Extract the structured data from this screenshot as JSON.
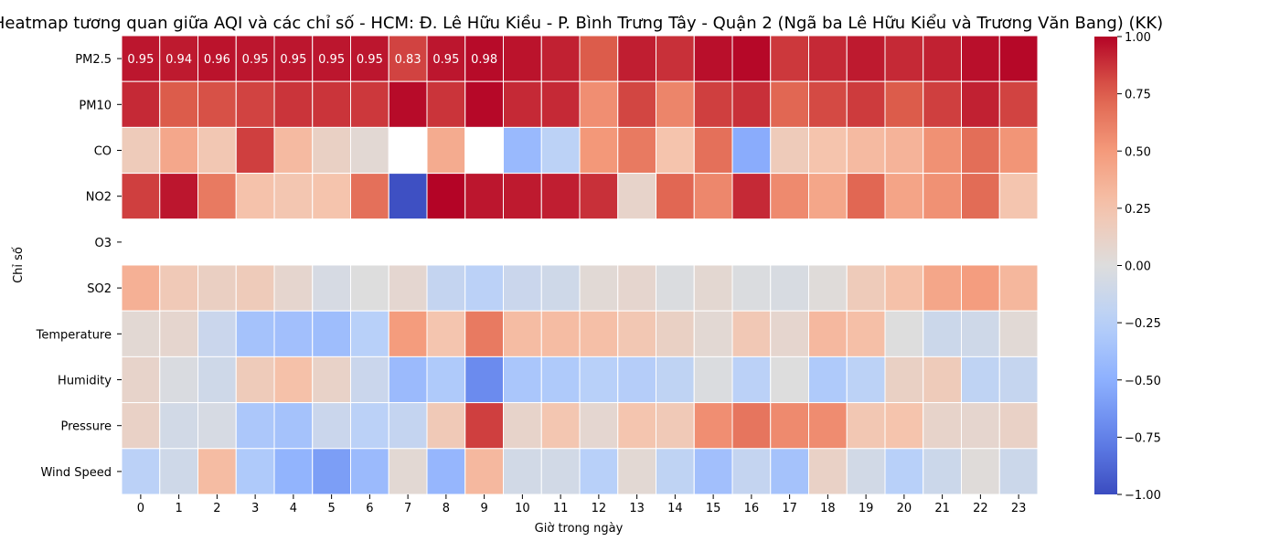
{
  "chart_data": {
    "type": "heatmap",
    "title": "Heatmap tương quan giữa AQI và các chỉ số - HCM: Đ. Lê Hữu Kiều - P. Bình Trưng Tây - Quận 2 (Ngã ba Lê Hữu Kiểu và Trương Văn Bang) (KK)",
    "xlabel": "Giờ trong ngày",
    "ylabel": "Chỉ số",
    "x_categories": [
      "0",
      "1",
      "2",
      "3",
      "4",
      "5",
      "6",
      "7",
      "8",
      "9",
      "10",
      "11",
      "12",
      "13",
      "14",
      "15",
      "16",
      "17",
      "18",
      "19",
      "20",
      "21",
      "22",
      "23"
    ],
    "y_categories": [
      "PM2.5",
      "PM10",
      "CO",
      "NO2",
      "O3",
      "SO2",
      "Temperature",
      "Humidity",
      "Pressure",
      "Wind Speed"
    ],
    "values": [
      [
        0.95,
        0.94,
        0.96,
        0.95,
        0.95,
        0.95,
        0.95,
        0.83,
        0.95,
        0.98,
        0.96,
        0.92,
        0.76,
        0.93,
        0.88,
        0.97,
        0.99,
        0.86,
        0.9,
        0.94,
        0.9,
        0.92,
        0.97,
        0.99
      ],
      [
        0.9,
        0.76,
        0.79,
        0.83,
        0.87,
        0.87,
        0.86,
        0.98,
        0.87,
        0.99,
        0.9,
        0.9,
        0.55,
        0.82,
        0.59,
        0.84,
        0.88,
        0.72,
        0.81,
        0.85,
        0.76,
        0.84,
        0.92,
        0.83
      ],
      [
        0.18,
        0.42,
        0.22,
        0.84,
        0.31,
        0.13,
        0.05,
        null,
        0.4,
        null,
        -0.43,
        -0.22,
        0.51,
        0.64,
        0.25,
        0.68,
        -0.52,
        0.18,
        0.25,
        0.31,
        0.35,
        0.54,
        0.69,
        0.52
      ],
      [
        0.84,
        0.95,
        0.64,
        0.26,
        0.23,
        0.25,
        0.68,
        -0.98,
        1.0,
        0.95,
        0.94,
        0.93,
        0.88,
        0.1,
        0.72,
        0.58,
        0.9,
        0.57,
        0.43,
        0.72,
        0.44,
        0.54,
        0.7,
        0.24
      ],
      [
        null,
        null,
        null,
        null,
        null,
        null,
        null,
        null,
        null,
        null,
        null,
        null,
        null,
        null,
        null,
        null,
        null,
        null,
        null,
        null,
        null,
        null,
        null,
        null
      ],
      [
        0.37,
        0.2,
        0.14,
        0.18,
        0.08,
        -0.05,
        0.0,
        0.07,
        -0.17,
        -0.23,
        -0.13,
        -0.1,
        0.04,
        0.08,
        -0.02,
        0.06,
        -0.02,
        -0.04,
        0.02,
        0.18,
        0.27,
        0.43,
        0.48,
        0.33
      ],
      [
        0.05,
        0.08,
        -0.13,
        -0.36,
        -0.38,
        -0.4,
        -0.25,
        0.49,
        0.24,
        0.64,
        0.3,
        0.3,
        0.28,
        0.22,
        0.13,
        0.05,
        0.21,
        0.08,
        0.32,
        0.28,
        0.0,
        -0.12,
        -0.1,
        0.04
      ],
      [
        0.1,
        -0.03,
        -0.1,
        0.18,
        0.27,
        0.11,
        -0.13,
        -0.42,
        -0.3,
        -0.7,
        -0.33,
        -0.3,
        -0.25,
        -0.27,
        -0.2,
        -0.02,
        -0.23,
        0.0,
        -0.3,
        -0.22,
        0.13,
        0.18,
        -0.2,
        -0.16
      ],
      [
        0.12,
        -0.08,
        -0.05,
        -0.32,
        -0.36,
        -0.13,
        -0.23,
        -0.17,
        0.2,
        0.84,
        0.1,
        0.23,
        0.07,
        0.24,
        0.2,
        0.55,
        0.66,
        0.57,
        0.56,
        0.22,
        0.25,
        0.1,
        0.08,
        0.12
      ],
      [
        -0.23,
        -0.1,
        0.3,
        -0.3,
        -0.47,
        -0.6,
        -0.42,
        0.05,
        -0.45,
        0.32,
        -0.08,
        -0.08,
        -0.25,
        0.05,
        -0.2,
        -0.38,
        -0.17,
        -0.36,
        0.12,
        -0.08,
        -0.25,
        -0.12,
        0.02,
        -0.12
      ]
    ],
    "annotated_row": 0,
    "annotated_columns": 10,
    "colormap": "coolwarm",
    "vmin": -1.0,
    "vmax": 1.0,
    "colorbar_ticks": [
      "1.00",
      "0.75",
      "0.50",
      "0.25",
      "0.00",
      "−0.25",
      "−0.50",
      "−0.75",
      "−1.00"
    ],
    "colorbar_tick_values": [
      1.0,
      0.75,
      0.5,
      0.25,
      0.0,
      -0.25,
      -0.5,
      -0.75,
      -1.0
    ],
    "missing_color": "#ffffff",
    "cell_border_color": "#ffffff"
  }
}
